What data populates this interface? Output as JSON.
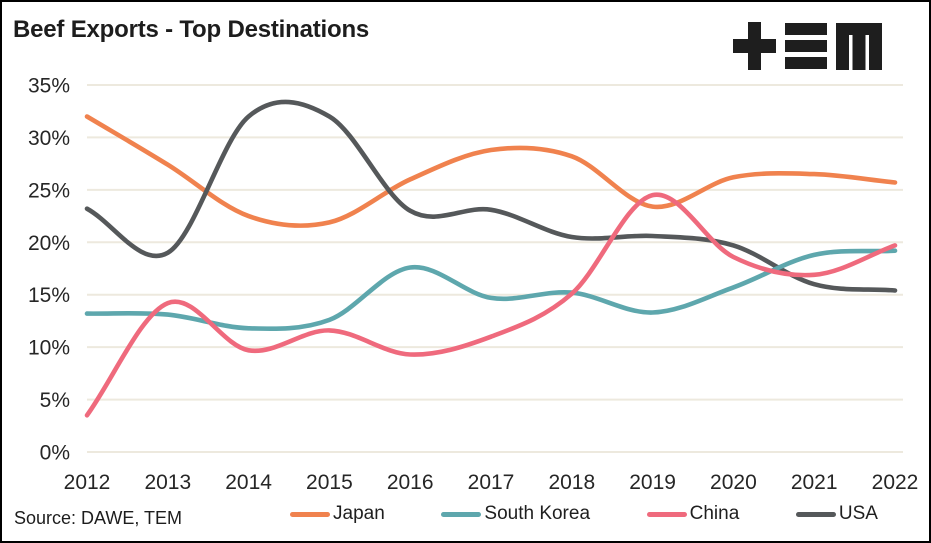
{
  "header": {
    "title": "Beef Exports - Top Destinations",
    "logo": {
      "name": "TEM logo",
      "glyphs": [
        "plus-icon",
        "triple-bar-icon",
        "m-icon"
      ],
      "color": "#1e1e1e"
    }
  },
  "footer": {
    "source": "Source: DAWE, TEM"
  },
  "chart_data": {
    "type": "line",
    "title": "Beef Exports - Top Destinations",
    "x": [
      2012,
      2013,
      2014,
      2015,
      2016,
      2017,
      2018,
      2019,
      2020,
      2021,
      2022
    ],
    "x_labels": [
      "2012",
      "2013",
      "2014",
      "2015",
      "2016",
      "2017",
      "2018",
      "2019",
      "2020",
      "2021",
      "2022"
    ],
    "ylim": [
      0,
      35
    ],
    "y_tick_step": 5,
    "y_tick_labels": [
      "0%",
      "5%",
      "10%",
      "15%",
      "20%",
      "25%",
      "30%",
      "35%"
    ],
    "grid": "horizontal",
    "grid_color": "#ede9de",
    "axis_text_color": "#262626",
    "legend_position": "bottom",
    "series": [
      {
        "name": "Japan",
        "color": "#f0824e",
        "z": 1,
        "values": [
          32.0,
          27.4,
          22.5,
          21.9,
          26.0,
          28.8,
          28.2,
          23.4,
          26.2,
          26.5,
          25.7
        ]
      },
      {
        "name": "South Korea",
        "color": "#5ea7ad",
        "z": 3,
        "values": [
          13.2,
          13.1,
          11.8,
          12.6,
          17.6,
          14.7,
          15.2,
          13.3,
          15.7,
          18.8,
          19.2
        ]
      },
      {
        "name": "China",
        "color": "#ef6a7d",
        "z": 4,
        "values": [
          3.5,
          14.2,
          9.7,
          11.6,
          9.3,
          11.0,
          15.1,
          24.5,
          18.6,
          16.9,
          19.7
        ]
      },
      {
        "name": "USA",
        "color": "#55585a",
        "z": 2,
        "values": [
          23.2,
          19.0,
          32.0,
          32.0,
          23.0,
          23.1,
          20.5,
          20.6,
          19.7,
          16.0,
          15.4
        ]
      }
    ]
  }
}
